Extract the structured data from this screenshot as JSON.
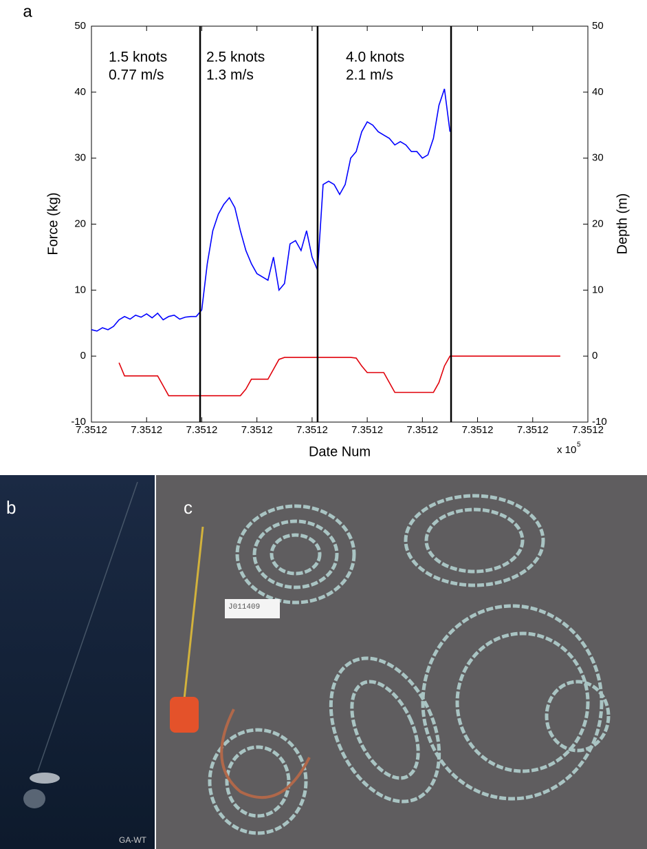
{
  "chart_data": {
    "type": "line",
    "panel_label": "a",
    "x_label": "Date Num",
    "x_multiplier": "x 10",
    "x_multiplier_exp": "5",
    "y_label": "Force (kg)",
    "y2_label": "Depth (m)",
    "xlim": [
      735120,
      735120.09
    ],
    "xticks": [
      {
        "value": 735120,
        "label": "7.3512"
      },
      {
        "value": 735120.01,
        "label": "7.3512"
      },
      {
        "value": 735120.02,
        "label": "7.3512"
      },
      {
        "value": 735120.03,
        "label": "7.3512"
      },
      {
        "value": 735120.04,
        "label": "7.3512"
      },
      {
        "value": 735120.05,
        "label": "7.3512"
      },
      {
        "value": 735120.06,
        "label": "7.3512"
      },
      {
        "value": 735120.07,
        "label": "7.3512"
      },
      {
        "value": 735120.08,
        "label": "7.3512"
      },
      {
        "value": 735120.09,
        "label": "7.3512"
      }
    ],
    "ylim": [
      -10,
      50
    ],
    "yticks": [
      -10,
      0,
      10,
      20,
      30,
      40,
      50
    ],
    "y2lim": [
      -10,
      50
    ],
    "y2ticks": [
      -10,
      0,
      10,
      20,
      30,
      40,
      50
    ],
    "grid": false,
    "vlines": [
      735120.0197,
      735120.041,
      735120.0652
    ],
    "annotations": [
      [
        "1.5 knots",
        "0.77 m/s"
      ],
      [
        "2.5 knots",
        "1.3 m/s"
      ],
      [
        "4.0 knots",
        "2.1 m/s"
      ]
    ],
    "series": [
      {
        "color": "#0000ff",
        "x": [
          735120,
          735120.001,
          735120.002,
          735120.003,
          735120.004,
          735120.005,
          735120.006,
          735120.007,
          735120.008,
          735120.009,
          735120.01,
          735120.011,
          735120.012,
          735120.013,
          735120.014,
          735120.015,
          735120.016,
          735120.017,
          735120.018,
          735120.019,
          735120.02,
          735120.021,
          735120.022,
          735120.023,
          735120.024,
          735120.025,
          735120.026,
          735120.027,
          735120.028,
          735120.029,
          735120.03,
          735120.031,
          735120.032,
          735120.033,
          735120.034,
          735120.035,
          735120.036,
          735120.037,
          735120.038,
          735120.039,
          735120.04,
          735120.041,
          735120.042,
          735120.043,
          735120.044,
          735120.045,
          735120.046,
          735120.047,
          735120.048,
          735120.049,
          735120.05,
          735120.051,
          735120.052,
          735120.053,
          735120.054,
          735120.055,
          735120.056,
          735120.057,
          735120.058,
          735120.059,
          735120.06,
          735120.061,
          735120.062,
          735120.063,
          735120.064,
          735120.065
        ],
        "values": [
          4,
          3.8,
          4.3,
          4,
          4.5,
          5.5,
          6,
          5.6,
          6.2,
          5.9,
          6.4,
          5.8,
          6.5,
          5.5,
          6,
          6.2,
          5.6,
          5.9,
          6,
          6,
          7,
          14,
          19,
          21.5,
          23,
          24,
          22.5,
          19,
          16,
          14,
          12.5,
          12,
          11.5,
          15,
          10,
          11,
          17,
          17.5,
          16,
          19,
          15,
          13,
          26,
          26.5,
          26,
          24.5,
          26,
          30,
          31,
          34,
          35.5,
          35,
          34,
          33.5,
          33,
          32,
          32.5,
          32,
          31,
          31,
          30,
          30.5,
          33,
          38,
          40.5,
          34
        ]
      },
      {
        "color": "#e0000a",
        "axis": "y2",
        "x": [
          735120.005,
          735120.006,
          735120.012,
          735120.013,
          735120.014,
          735120.027,
          735120.028,
          735120.029,
          735120.032,
          735120.033,
          735120.034,
          735120.035,
          735120.047,
          735120.048,
          735120.049,
          735120.05,
          735120.053,
          735120.054,
          735120.055,
          735120.062,
          735120.063,
          735120.064,
          735120.065,
          735120.085
        ],
        "values": [
          -1,
          -3,
          -3,
          -4.5,
          -6,
          -6,
          -5,
          -3.5,
          -3.5,
          -2,
          -0.5,
          -0.2,
          -0.2,
          -0.3,
          -1.5,
          -2.5,
          -2.5,
          -4,
          -5.5,
          -5.5,
          -4,
          -1.5,
          0,
          0
        ]
      }
    ]
  },
  "photos": {
    "b_label": "b",
    "b_credit": "GA-WT",
    "c_label": "c",
    "c_tag": "J011409"
  }
}
